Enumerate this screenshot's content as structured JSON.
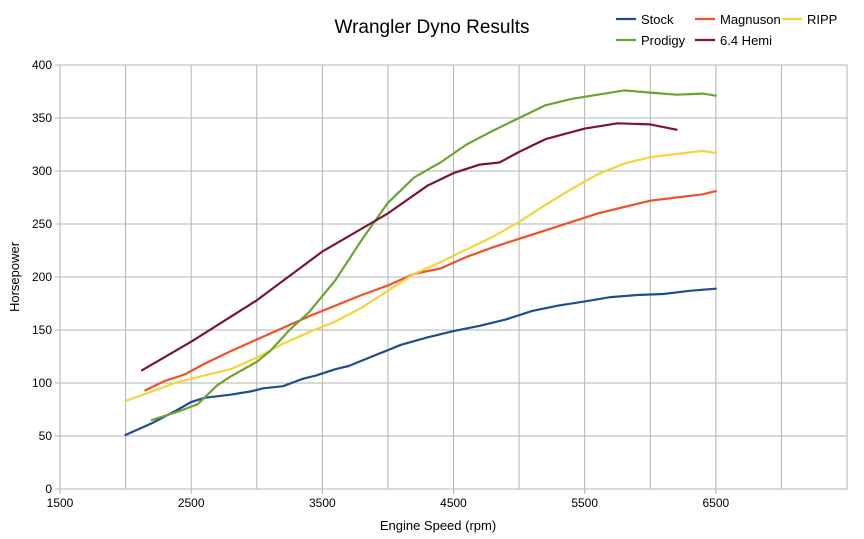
{
  "chart_data": {
    "type": "line",
    "title": "Wrangler Dyno Results",
    "xlabel": "Engine Speed (rpm)",
    "ylabel": "Horsepower",
    "xlim": [
      1500,
      7500
    ],
    "ylim": [
      0,
      400
    ],
    "xticks": [
      1500,
      2500,
      3500,
      4500,
      5500,
      6500
    ],
    "yticks": [
      0,
      50,
      100,
      150,
      200,
      250,
      300,
      350,
      400
    ],
    "grid": true,
    "legend_position": "top-right",
    "series": [
      {
        "name": "Stock",
        "color": "#1f4e8c",
        "x": [
          2000,
          2200,
          2400,
          2500,
          2600,
          2800,
          2950,
          3050,
          3200,
          3350,
          3450,
          3600,
          3700,
          3900,
          4100,
          4300,
          4500,
          4700,
          4900,
          5100,
          5300,
          5500,
          5700,
          5900,
          6100,
          6300,
          6500
        ],
        "y": [
          51,
          62,
          75,
          82,
          86,
          89,
          92,
          95,
          97,
          104,
          107,
          113,
          116,
          126,
          136,
          143,
          149,
          154,
          160,
          168,
          173,
          177,
          181,
          183,
          184,
          187,
          189
        ]
      },
      {
        "name": "Magnuson",
        "color": "#f0502a",
        "x": [
          2150,
          2300,
          2450,
          2600,
          2800,
          3000,
          3200,
          3400,
          3600,
          3800,
          4000,
          4200,
          4400,
          4600,
          4800,
          5000,
          5200,
          5400,
          5600,
          5800,
          6000,
          6200,
          6400,
          6500
        ],
        "y": [
          93,
          102,
          108,
          118,
          130,
          141,
          152,
          163,
          173,
          183,
          192,
          203,
          208,
          219,
          228,
          236,
          244,
          252,
          260,
          266,
          272,
          275,
          278,
          281
        ]
      },
      {
        "name": "RIPP",
        "color": "#f5d33a",
        "x": [
          2000,
          2200,
          2400,
          2600,
          2800,
          3000,
          3200,
          3400,
          3600,
          3800,
          4000,
          4200,
          4400,
          4600,
          4800,
          5000,
          5200,
          5400,
          5600,
          5800,
          6000,
          6200,
          6400,
          6500
        ],
        "y": [
          83,
          92,
          101,
          107,
          113,
          124,
          137,
          148,
          158,
          171,
          187,
          203,
          214,
          226,
          238,
          252,
          268,
          283,
          297,
          307,
          313,
          316,
          319,
          317
        ]
      },
      {
        "name": "Prodigy",
        "color": "#6aa532",
        "x": [
          2200,
          2400,
          2550,
          2700,
          2800,
          3000,
          3100,
          3250,
          3400,
          3600,
          3800,
          4000,
          4200,
          4400,
          4600,
          4800,
          5000,
          5200,
          5400,
          5600,
          5800,
          6000,
          6200,
          6400,
          6500
        ],
        "y": [
          65,
          73,
          80,
          98,
          106,
          120,
          130,
          150,
          167,
          197,
          235,
          270,
          294,
          308,
          325,
          338,
          350,
          362,
          368,
          372,
          376,
          374,
          372,
          373,
          371
        ]
      },
      {
        "name": "6.4 Hemi",
        "color": "#7b1535",
        "x": [
          2125,
          2500,
          3000,
          3500,
          4000,
          4300,
          4500,
          4700,
          4850,
          5000,
          5200,
          5500,
          5750,
          6000,
          6200
        ],
        "y": [
          112,
          139,
          178,
          224,
          260,
          286,
          298,
          306,
          308,
          318,
          330,
          340,
          345,
          344,
          339
        ]
      }
    ]
  }
}
